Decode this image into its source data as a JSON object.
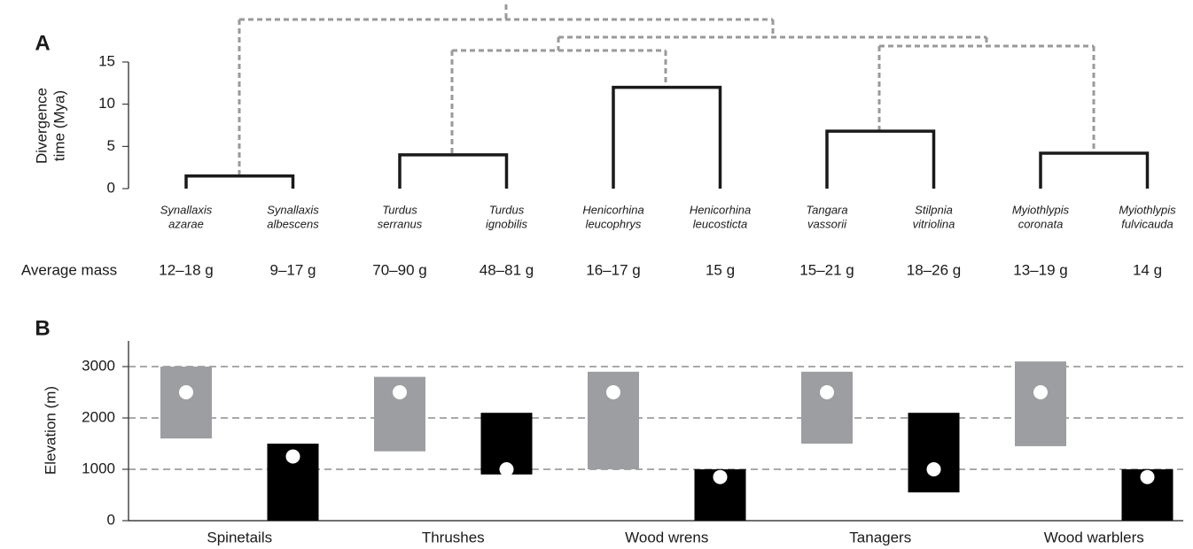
{
  "chart_data": [
    {
      "type": "dendrogram",
      "panel": "A",
      "ylabel": [
        "Divergence",
        "time (Mya)"
      ],
      "ylim": [
        0,
        15
      ],
      "yticks": [
        0,
        5,
        10,
        15
      ],
      "species": [
        [
          "Synallaxis",
          "azarae"
        ],
        [
          "Synallaxis",
          "albescens"
        ],
        [
          "Turdus",
          "serranus"
        ],
        [
          "Turdus",
          "ignobilis"
        ],
        [
          "Henicorhina",
          "leucophrys"
        ],
        [
          "Henicorhina",
          "leucosticta"
        ],
        [
          "Tangara",
          "vassorii"
        ],
        [
          "Stilpnia",
          "vitriolina"
        ],
        [
          "Myiothlypis",
          "coronata"
        ],
        [
          "Myiothlypis",
          "fulvicauda"
        ]
      ],
      "mass_label": "Average mass",
      "mass": [
        "12–18 g",
        "9–17 g",
        "70–90 g",
        "48–81 g",
        "16–17 g",
        "15 g",
        "15–21 g",
        "18–26 g",
        "13–19 g",
        "14 g"
      ],
      "heights": [
        1.5,
        4,
        12,
        6.8,
        4.2
      ],
      "color": "#1a1a1a"
    },
    {
      "type": "range",
      "panel": "B",
      "ylabel": "Elevation (m)",
      "categories": [
        "Spinetails",
        "Thrushes",
        "Wood wrens",
        "Tanagers",
        "Wood warblers"
      ],
      "ylim": [
        0,
        3500
      ],
      "yticks": [
        0,
        1000,
        2000,
        3000
      ],
      "grid": true,
      "series": [
        {
          "color": "#9c9ea1",
          "low": [
            1600,
            1350,
            1000,
            1500,
            1450
          ],
          "high": [
            3000,
            2800,
            2900,
            2900,
            3100
          ],
          "mean": [
            2500,
            2500,
            2500,
            2500,
            2500
          ]
        },
        {
          "color": "#000000",
          "low": [
            0,
            900,
            0,
            550,
            0
          ],
          "high": [
            1500,
            2100,
            1000,
            2100,
            1000
          ],
          "mean": [
            1250,
            1000,
            850,
            1000,
            850
          ]
        }
      ]
    }
  ]
}
